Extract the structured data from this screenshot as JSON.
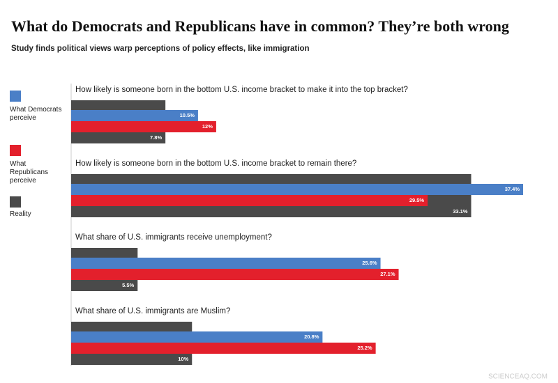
{
  "chart_data": {
    "type": "bar",
    "title": "What do Democrats and Republicans have in common? They’re both wrong",
    "subtitle": "Study finds political views warp perceptions of policy effects, like immigration",
    "categories": [
      "How likely is someone born in the bottom U.S. income bracket to make it into the top bracket?",
      "How likely is someone born in the bottom U.S. income bracket to remain there?",
      "What share of U.S. immigrants receive unemployment?",
      "What share of U.S. immigrants are Muslim?"
    ],
    "series": [
      {
        "name": "What Democrats perceive",
        "color": "#4a7fc7",
        "values": [
          10.5,
          37.4,
          25.6,
          20.8
        ],
        "value_labels": [
          "10.5%",
          "37.4%",
          "25.6%",
          "20.8%"
        ]
      },
      {
        "name": "What Republicans perceive",
        "color": "#e3202c",
        "values": [
          12,
          29.5,
          27.1,
          25.2
        ],
        "value_labels": [
          "12%",
          "29.5%",
          "27.1%",
          "25.2%"
        ]
      },
      {
        "name": "Reality",
        "color": "#4a4a4a",
        "values": [
          7.8,
          33.1,
          5.5,
          10
        ],
        "value_labels": [
          "7.8%",
          "33.1%",
          "5.5%",
          "10%"
        ]
      }
    ],
    "watermark": "SCIENCEAQ.COM"
  }
}
